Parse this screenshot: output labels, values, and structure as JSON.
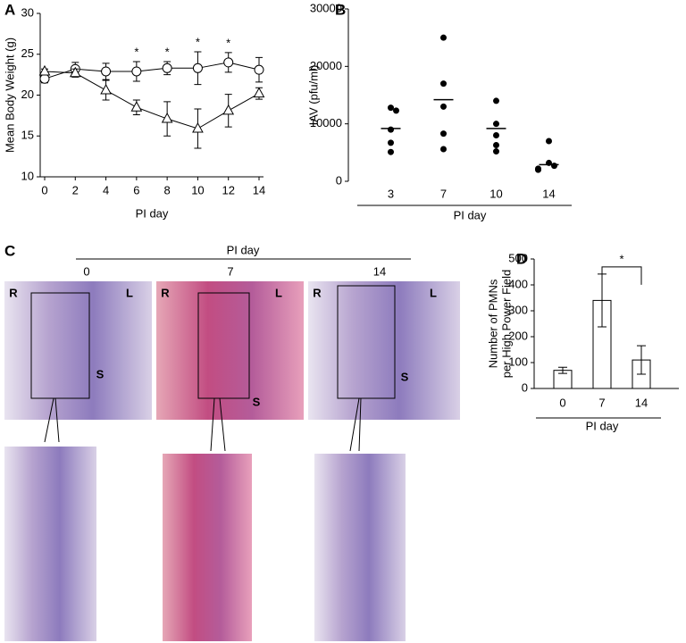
{
  "chart_data": [
    {
      "type": "line",
      "label": "A",
      "x": [
        0,
        2,
        4,
        6,
        8,
        10,
        12,
        14
      ],
      "xlim": [
        0,
        14
      ],
      "xticks": [
        0,
        2,
        4,
        6,
        8,
        10,
        12,
        14
      ],
      "ylim": [
        10,
        30
      ],
      "yticks": [
        10,
        15,
        20,
        25,
        30
      ],
      "x_label": "PI day",
      "y_label": "Mean Body Weight (g)",
      "series": [
        {
          "marker": "circle",
          "color": "#000000",
          "values": [
            22,
            23.2,
            22.9,
            22.9,
            23.3,
            23.3,
            24,
            23.1
          ],
          "errors": [
            0.5,
            0.8,
            1,
            1.2,
            0.8,
            2,
            1.2,
            1.5
          ]
        },
        {
          "marker": "triangle",
          "color": "#000000",
          "values": [
            22.9,
            22.7,
            20.6,
            18.5,
            17.1,
            15.9,
            18.1,
            20.2
          ],
          "errors": [
            0.3,
            0.5,
            1.2,
            0.9,
            2.1,
            2.4,
            2,
            0.7
          ]
        }
      ],
      "annotations": [
        {
          "x": 6,
          "text": "*"
        },
        {
          "x": 8,
          "text": "*"
        },
        {
          "x": 10,
          "text": "*"
        },
        {
          "x": 12,
          "text": "*"
        }
      ]
    },
    {
      "type": "scatter",
      "label": "B",
      "categories": [
        "3",
        "7",
        "10",
        "14"
      ],
      "values": [
        [
          12800,
          12300,
          9000,
          6700,
          5100
        ],
        [
          25000,
          17000,
          13000,
          8300,
          5600
        ],
        [
          14000,
          10000,
          8000,
          6300,
          5200
        ],
        [
          7000,
          3200,
          2700,
          2200,
          2000
        ]
      ],
      "means": [
        9200,
        14200,
        9200,
        2900
      ],
      "color": "#000000",
      "ylim": [
        0,
        30000
      ],
      "yticks": [
        0,
        10000,
        20000,
        30000
      ],
      "x_label": "PI day",
      "y_label": "IAV (pfu/ml)"
    },
    {
      "type": "bar",
      "label": "D",
      "categories": [
        "0",
        "7",
        "14"
      ],
      "values": [
        70,
        340,
        110
      ],
      "errors": [
        12,
        102,
        55
      ],
      "color": "#ffffff",
      "ylim": [
        0,
        500
      ],
      "yticks": [
        0,
        100,
        200,
        300,
        400,
        500
      ],
      "x_label": "PI day",
      "y_label": [
        "Number of PMNs",
        "per High Power Field"
      ],
      "significance": {
        "between": [
          "7",
          "14"
        ],
        "text": "*"
      }
    }
  ],
  "panel_c": {
    "label": "C",
    "title": "PI day",
    "columns": [
      {
        "day": "0",
        "left": "R",
        "right": "L",
        "center": "S"
      },
      {
        "day": "7",
        "left": "R",
        "right": "L",
        "center": "S"
      },
      {
        "day": "14",
        "left": "R",
        "right": "L",
        "center": "S"
      }
    ]
  }
}
